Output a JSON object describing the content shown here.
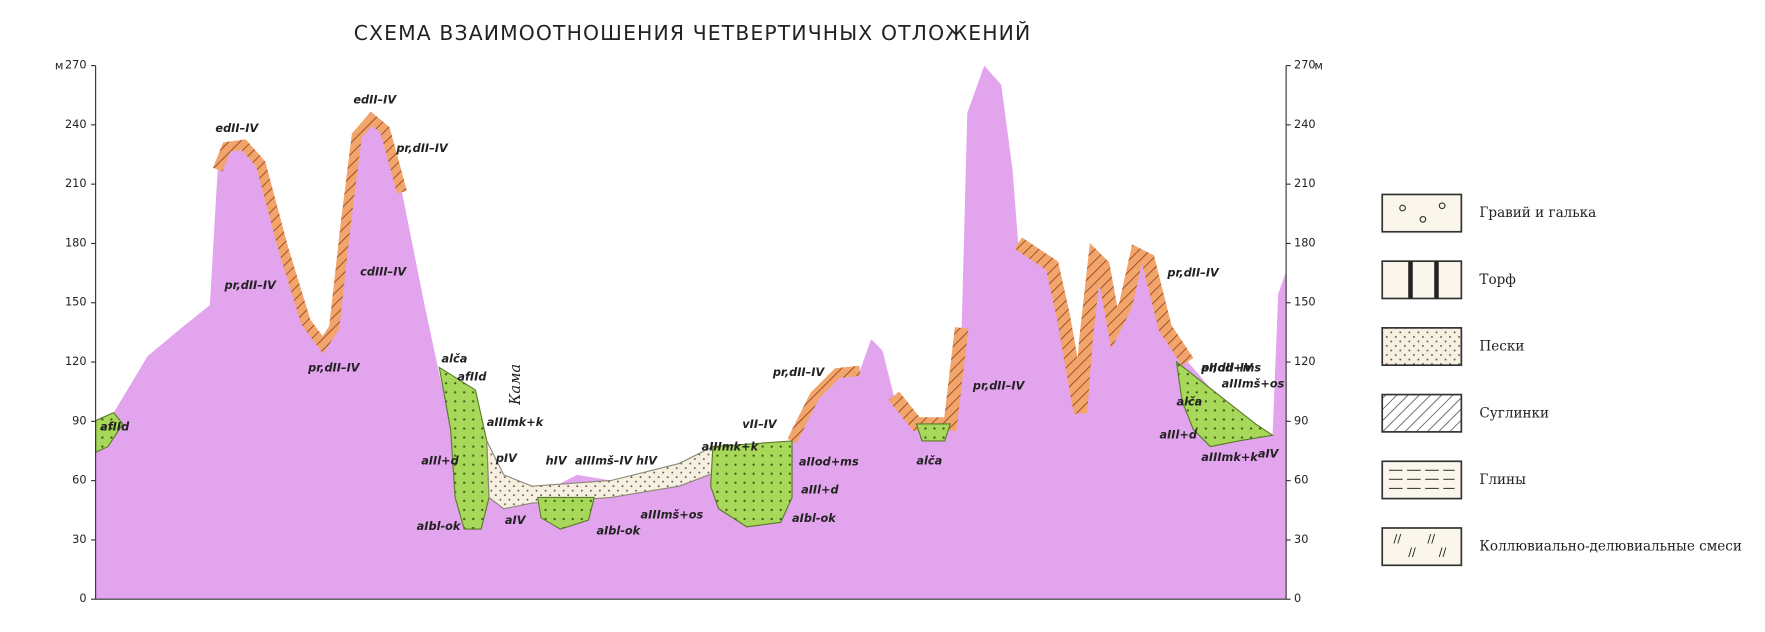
{
  "title": "СХЕМА ВЗАИМООТНОШЕНИЯ ЧЕТВЕРТИЧНЫХ ОТЛОЖЕНИЙ",
  "axis": {
    "unit": "м",
    "ticks": [
      0,
      30,
      60,
      90,
      120,
      150,
      180,
      210,
      240,
      270
    ]
  },
  "river": "Кама",
  "labels": [
    "afIId",
    "edII–IV",
    "pr,dII–IV",
    "pr,dII–IV",
    "edII–IV",
    "pr,dII–IV",
    "cdIII–IV",
    "pr,dII–IV",
    "alča",
    "afIId",
    "aIIImk+k",
    "aIIl+d",
    "aIbl-ok",
    "pIV",
    "aIV",
    "hIV",
    "aIIImš–IV",
    "hIV",
    "aIIImš+os",
    "aIbl-ok",
    "aIIImk+k",
    "vII–IV",
    "aIIod+ms",
    "aIIl+d",
    "aIbl-ok",
    "pr,dII–IV",
    "alča",
    "pr,dII–IV",
    "pr,dII–IV",
    "aIIod+ms",
    "aIIImš+os",
    "alča",
    "aIIl+d",
    "aIIImk+k",
    "aIV"
  ],
  "legend": [
    "Гравий и галька",
    "Торф",
    "Пески",
    "Суглинки",
    "Глины",
    "Коллювиально-делювиальные смеси"
  ]
}
